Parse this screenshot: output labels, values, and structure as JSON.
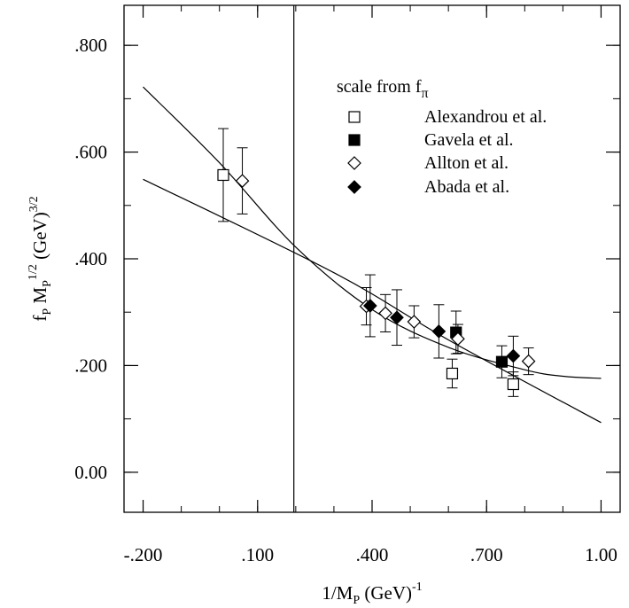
{
  "chart_data": {
    "type": "scatter",
    "xlabel": {
      "main": "1/M",
      "sub": "P",
      "rest": " (GeV)",
      "sup": "-1"
    },
    "ylabel": {
      "f": "f",
      "f_sub": "P",
      "m": " M",
      "m_sub": "P",
      "m_sup": "1/2",
      "rest": " (GeV)",
      "sup": "3/2"
    },
    "xlim": [
      -0.25,
      1.05
    ],
    "ylim": [
      -0.075,
      0.875
    ],
    "x_ticks": [
      {
        "value": -0.2,
        "label": "-.200"
      },
      {
        "value": 0.1,
        "label": ".100"
      },
      {
        "value": 0.4,
        "label": ".400"
      },
      {
        "value": 0.7,
        "label": ".700"
      },
      {
        "value": 1.0,
        "label": "1.00"
      }
    ],
    "y_ticks": [
      {
        "value": 0.0,
        "label": "0.00"
      },
      {
        "value": 0.2,
        "label": ".200"
      },
      {
        "value": 0.4,
        "label": ".400"
      },
      {
        "value": 0.6,
        "label": ".600"
      },
      {
        "value": 0.8,
        "label": ".800"
      }
    ],
    "x_minor_step": 0.1,
    "y_minor_step": 0.1,
    "vertical_line_x": 0.195,
    "legend": {
      "title": "scale from f",
      "title_sub": "π",
      "placement": "top-right"
    },
    "series": [
      {
        "name": "Alexandrou et al.",
        "marker": "open-square",
        "points": [
          {
            "x": 0.01,
            "y": 0.557,
            "err": 0.087
          },
          {
            "x": 0.61,
            "y": 0.185,
            "err": 0.027
          },
          {
            "x": 0.77,
            "y": 0.165,
            "err": 0.023
          }
        ]
      },
      {
        "name": "Gavela et al.",
        "marker": "filled-square",
        "points": [
          {
            "x": 0.62,
            "y": 0.262,
            "err": 0.04
          },
          {
            "x": 0.74,
            "y": 0.207,
            "err": 0.03
          }
        ]
      },
      {
        "name": "Allton et al.",
        "marker": "open-diamond",
        "points": [
          {
            "x": 0.06,
            "y": 0.546,
            "err": 0.062
          },
          {
            "x": 0.385,
            "y": 0.311,
            "err": 0.035
          },
          {
            "x": 0.435,
            "y": 0.298,
            "err": 0.035
          },
          {
            "x": 0.51,
            "y": 0.282,
            "err": 0.03
          },
          {
            "x": 0.625,
            "y": 0.25,
            "err": 0.027
          },
          {
            "x": 0.81,
            "y": 0.208,
            "err": 0.025
          }
        ]
      },
      {
        "name": "Abada et al.",
        "marker": "filled-diamond",
        "points": [
          {
            "x": 0.395,
            "y": 0.312,
            "err": 0.058
          },
          {
            "x": 0.465,
            "y": 0.29,
            "err": 0.052
          },
          {
            "x": 0.575,
            "y": 0.264,
            "err": 0.05
          },
          {
            "x": 0.77,
            "y": 0.218,
            "err": 0.037
          }
        ]
      }
    ],
    "fit_curves": [
      {
        "kind": "linear",
        "points": [
          [
            -0.2,
            0.549
          ],
          [
            0.3,
            0.374
          ],
          [
            0.6,
            0.248
          ],
          [
            1.0,
            0.093
          ]
        ]
      },
      {
        "kind": "quadratic",
        "points": [
          [
            -0.2,
            0.722
          ],
          [
            0.0,
            0.58
          ],
          [
            0.2,
            0.422
          ],
          [
            0.4,
            0.305
          ],
          [
            0.6,
            0.234
          ],
          [
            0.8,
            0.192
          ],
          [
            0.9,
            0.18
          ],
          [
            1.0,
            0.176
          ]
        ]
      }
    ]
  }
}
